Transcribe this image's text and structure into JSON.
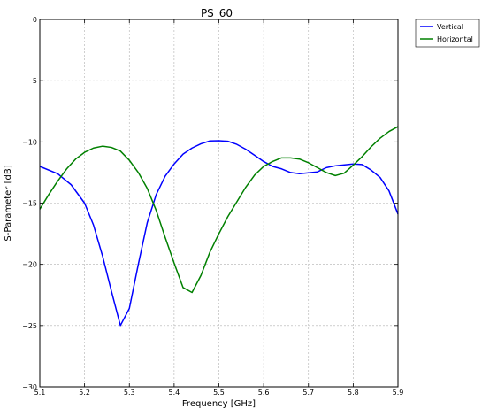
{
  "chart_data": {
    "type": "line",
    "title": "PS_60",
    "xlabel": "Frequency [GHz]",
    "ylabel": "S-Parameter [dB]",
    "xlim": [
      5.1,
      5.9
    ],
    "ylim": [
      -30,
      0
    ],
    "xticks": [
      "5.1",
      "5.2",
      "5.3",
      "5.4",
      "5.5",
      "5.6",
      "5.7",
      "5.8",
      "5.9"
    ],
    "yticks": [
      "0",
      "−5",
      "−10",
      "−15",
      "−20",
      "−25",
      "−30"
    ],
    "grid": true,
    "legend_position": "outside-top-right",
    "series": [
      {
        "name": "Vertical",
        "color": "#0000ff",
        "x": [
          5.1,
          5.14,
          5.17,
          5.2,
          5.22,
          5.24,
          5.26,
          5.28,
          5.3,
          5.32,
          5.34,
          5.36,
          5.38,
          5.4,
          5.42,
          5.44,
          5.46,
          5.48,
          5.5,
          5.52,
          5.54,
          5.56,
          5.58,
          5.6,
          5.62,
          5.64,
          5.66,
          5.68,
          5.72,
          5.74,
          5.76,
          5.8,
          5.82,
          5.84,
          5.86,
          5.88,
          5.9
        ],
        "y": [
          -12.0,
          -12.6,
          -13.5,
          -15.0,
          -16.8,
          -19.3,
          -22.2,
          -25.0,
          -23.6,
          -20.0,
          -16.6,
          -14.3,
          -12.8,
          -11.8,
          -11.0,
          -10.5,
          -10.15,
          -9.92,
          -9.9,
          -9.95,
          -10.2,
          -10.6,
          -11.1,
          -11.6,
          -12.0,
          -12.2,
          -12.5,
          -12.6,
          -12.45,
          -12.1,
          -11.95,
          -11.8,
          -11.85,
          -12.3,
          -12.9,
          -14.0,
          -15.9
        ]
      },
      {
        "name": "Horizontal",
        "color": "#008000",
        "x": [
          5.1,
          5.12,
          5.14,
          5.16,
          5.18,
          5.2,
          5.22,
          5.24,
          5.26,
          5.28,
          5.3,
          5.32,
          5.34,
          5.36,
          5.38,
          5.4,
          5.42,
          5.44,
          5.46,
          5.48,
          5.5,
          5.52,
          5.54,
          5.56,
          5.58,
          5.6,
          5.62,
          5.64,
          5.66,
          5.68,
          5.7,
          5.72,
          5.74,
          5.76,
          5.78,
          5.8,
          5.82,
          5.84,
          5.86,
          5.88,
          5.9
        ],
        "y": [
          -15.5,
          -14.3,
          -13.2,
          -12.2,
          -11.4,
          -10.85,
          -10.5,
          -10.35,
          -10.45,
          -10.75,
          -11.5,
          -12.5,
          -13.8,
          -15.6,
          -17.8,
          -19.9,
          -21.9,
          -22.3,
          -20.9,
          -19.0,
          -17.5,
          -16.1,
          -14.9,
          -13.7,
          -12.7,
          -12.0,
          -11.6,
          -11.3,
          -11.3,
          -11.4,
          -11.7,
          -12.1,
          -12.5,
          -12.75,
          -12.55,
          -11.9,
          -11.2,
          -10.4,
          -9.7,
          -9.15,
          -8.75
        ]
      }
    ]
  }
}
